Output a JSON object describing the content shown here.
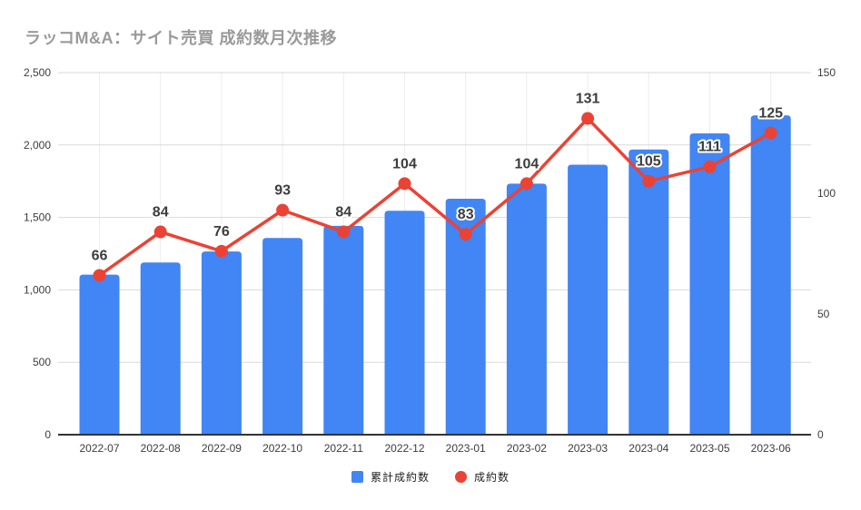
{
  "page": {
    "title": "ラッコM&A：サイト売買 成約数月次推移"
  },
  "colors": {
    "bar": "#4285F4",
    "line": "#EA4335",
    "grid": "#d9d9d9",
    "grid_vertical": "#ececec",
    "axis_line": "#333333",
    "title_text": "#9a9a9a",
    "tick_text": "#3c3c3c",
    "data_label_text": "#3d3d3d"
  },
  "legend": {
    "items": [
      {
        "label": "累計成約数",
        "marker": "square",
        "color": "#4285F4"
      },
      {
        "label": "成約数",
        "marker": "circle",
        "color": "#EA4335"
      }
    ]
  },
  "chart_data": {
    "type": "combo-bar-line",
    "title": "ラッコM&A：サイト売買 成約数月次推移",
    "categories": [
      "2022-07",
      "2022-08",
      "2022-09",
      "2022-10",
      "2022-11",
      "2022-12",
      "2023-01",
      "2023-02",
      "2023-03",
      "2023-04",
      "2023-05",
      "2023-06"
    ],
    "series": [
      {
        "name": "累計成約数",
        "type": "bar",
        "axis": "left",
        "color": "#4285F4",
        "values": [
          1105,
          1189,
          1265,
          1358,
          1442,
          1546,
          1629,
          1733,
          1864,
          1969,
          2080,
          2205
        ]
      },
      {
        "name": "成約数",
        "type": "line",
        "axis": "right",
        "color": "#EA4335",
        "values": [
          66,
          84,
          76,
          93,
          84,
          104,
          83,
          104,
          131,
          105,
          111,
          125
        ],
        "point_labels": [
          "66",
          "84",
          "76",
          "93",
          "84",
          "104",
          "83",
          "104",
          "131",
          "105",
          "111",
          "125"
        ]
      }
    ],
    "left_axis": {
      "min": 0,
      "max": 2500,
      "ticks": [
        {
          "v": 0,
          "label": "0"
        },
        {
          "v": 500,
          "label": "500"
        },
        {
          "v": 1000,
          "label": "1,000"
        },
        {
          "v": 1500,
          "label": "1,500"
        },
        {
          "v": 2000,
          "label": "2,000"
        },
        {
          "v": 2500,
          "label": "2,500"
        }
      ]
    },
    "right_axis": {
      "min": 0,
      "max": 150,
      "ticks": [
        {
          "v": 0,
          "label": "0"
        },
        {
          "v": 50,
          "label": "50"
        },
        {
          "v": 100,
          "label": "100"
        },
        {
          "v": 150,
          "label": "150"
        }
      ]
    },
    "grid": true,
    "legend_position": "bottom"
  }
}
